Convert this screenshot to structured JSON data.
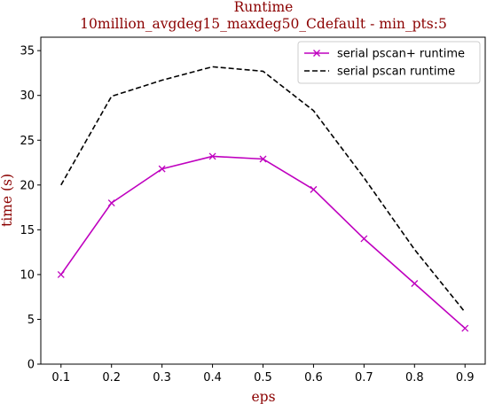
{
  "chart_data": {
    "type": "line",
    "title": "Runtime",
    "subtitle": "10million_avgdeg15_maxdeg50_Cdefault - min_pts:5",
    "xlabel": "eps",
    "ylabel": "time (s)",
    "xlim": [
      0.06,
      0.94
    ],
    "ylim": [
      0,
      36.5
    ],
    "x": [
      0.1,
      0.2,
      0.3,
      0.4,
      0.5,
      0.6,
      0.7,
      0.8,
      0.9
    ],
    "x_ticks": [
      "0.1",
      "0.2",
      "0.3",
      "0.4",
      "0.5",
      "0.6",
      "0.7",
      "0.8",
      "0.9"
    ],
    "y_ticks": [
      0,
      5,
      10,
      15,
      20,
      25,
      30,
      35
    ],
    "grid": false,
    "legend_position": "top-right",
    "series": [
      {
        "name": "serial pscan+ runtime",
        "values": [
          10.0,
          18.0,
          21.8,
          23.2,
          22.9,
          19.5,
          14.0,
          9.0,
          4.0
        ],
        "color": "#bf00bf",
        "line_style": "solid",
        "marker": "x"
      },
      {
        "name": "serial pscan runtime",
        "values": [
          20.0,
          29.9,
          31.7,
          33.2,
          32.7,
          28.3,
          20.8,
          12.8,
          5.8
        ],
        "color": "#000000",
        "line_style": "dashed",
        "marker": "none"
      }
    ]
  }
}
